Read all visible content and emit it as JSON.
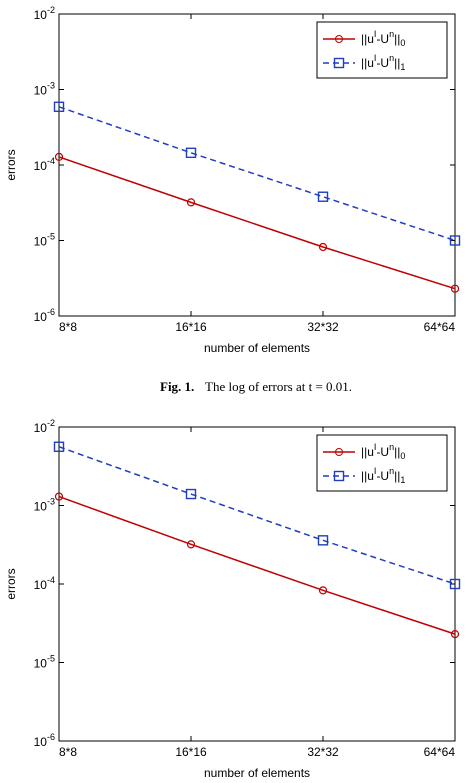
{
  "chart_data": [
    {
      "type": "line",
      "ylabel": "errors",
      "xlabel": "number of elements",
      "categories": [
        "8*8",
        "16*16",
        "32*32",
        "64*64"
      ],
      "log_scale": "y",
      "ylim": [
        1e-06,
        0.01
      ],
      "yticks": [
        {
          "value": 1e-06,
          "label": "10^-6"
        },
        {
          "value": 1e-05,
          "label": "10^-5"
        },
        {
          "value": 0.0001,
          "label": "10^-4"
        },
        {
          "value": 0.001,
          "label": "10^-3"
        },
        {
          "value": 0.01,
          "label": "10^-2"
        }
      ],
      "grid": false,
      "legend": "upper right",
      "series": [
        {
          "name": "||u^I-U^n||_0",
          "color": "#c00000",
          "marker": "circle",
          "dashed": false,
          "values": [
            0.000128,
            3.2e-05,
            8.2e-06,
            2.3e-06
          ]
        },
        {
          "name": "||u^I-U^n||_1",
          "color": "#1f3fbf",
          "marker": "square",
          "dashed": true,
          "values": [
            0.00059,
            0.000145,
            3.8e-05,
            1e-05
          ]
        }
      ]
    },
    {
      "type": "line",
      "ylabel": "errors",
      "xlabel": "number of elements",
      "categories": [
        "8*8",
        "16*16",
        "32*32",
        "64*64"
      ],
      "log_scale": "y",
      "ylim": [
        1e-06,
        0.01
      ],
      "yticks": [
        {
          "value": 1e-06,
          "label": "10^-6"
        },
        {
          "value": 1e-05,
          "label": "10^-5"
        },
        {
          "value": 0.0001,
          "label": "10^-4"
        },
        {
          "value": 0.001,
          "label": "10^-3"
        },
        {
          "value": 0.01,
          "label": "10^-2"
        }
      ],
      "grid": false,
      "legend": "upper right",
      "series": [
        {
          "name": "||u^I-U^n||_0",
          "color": "#c00000",
          "marker": "circle",
          "dashed": false,
          "values": [
            0.0013,
            0.00032,
            8.3e-05,
            2.3e-05
          ]
        },
        {
          "name": "||u^I-U^n||_1",
          "color": "#1f3fbf",
          "marker": "square",
          "dashed": true,
          "values": [
            0.0056,
            0.0014,
            0.00036,
            0.0001
          ]
        }
      ]
    }
  ],
  "caption": {
    "label": "Fig. 1.",
    "text": "The log of errors at t = 0.01."
  }
}
